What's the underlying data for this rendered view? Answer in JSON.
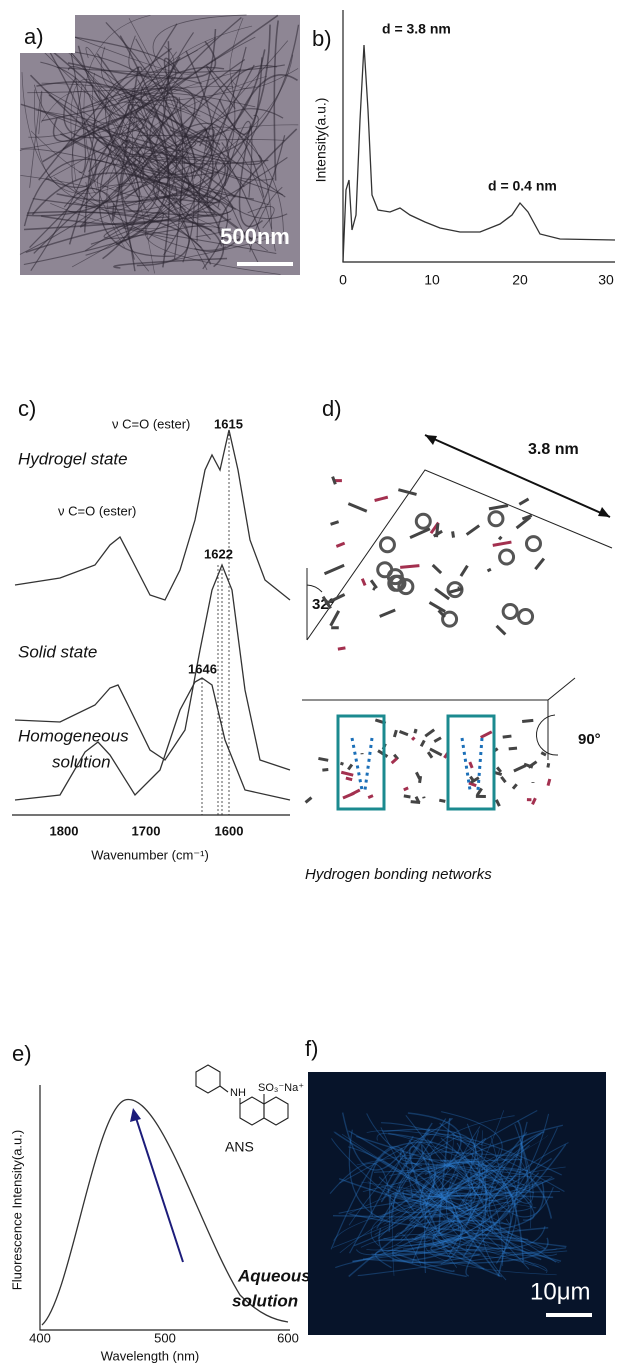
{
  "panels": [
    {
      "label": "a)",
      "scale_bar": "500nm"
    },
    {
      "label": "b)",
      "y_axis_label": "Intensity(a.u.)",
      "x_ticks": [
        "0",
        "10",
        "20",
        "30"
      ],
      "annotations": [
        "d = 3.8 nm",
        "d = 0.4 nm"
      ]
    },
    {
      "label": "c)",
      "x_axis_label": "Wavenumber (cm⁻¹)",
      "x_ticks": [
        "1800",
        "1700",
        "1600"
      ],
      "annotations": [
        "ν C=O (ester)",
        "1615",
        "Hydrogel state",
        "ν C=O (ester)",
        "1622",
        "Solid state",
        "1646",
        "Homogeneous",
        "solution"
      ]
    },
    {
      "label": "d)",
      "annotations": [
        "3.8 nm",
        "32°",
        "90°"
      ],
      "caption": "Hydrogen bonding networks"
    },
    {
      "label": "e)",
      "x_axis_label": "Wavelength (nm)",
      "y_axis_label": "Fluorescence Intensity(a.u.)",
      "x_ticks": [
        "400",
        "500",
        "600"
      ],
      "molecule": {
        "groups": [
          "NH",
          "SO₃⁻Na⁺"
        ],
        "name": "ANS"
      },
      "annotations": [
        "Aqueous",
        "solution"
      ]
    },
    {
      "label": "f)",
      "scale_bar": "10μm"
    }
  ]
}
